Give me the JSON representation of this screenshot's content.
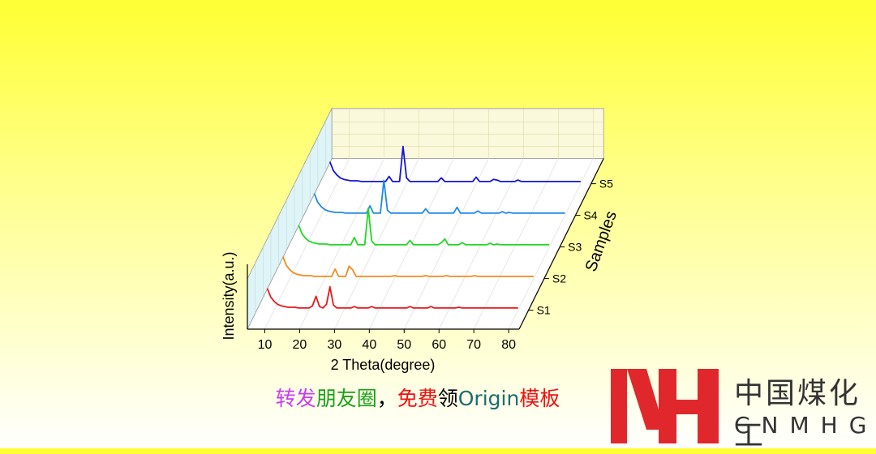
{
  "chart_data": {
    "type": "waterfall",
    "x": [
      8,
      9,
      10,
      11,
      12,
      13,
      14,
      15,
      16,
      17,
      18,
      19,
      20,
      21,
      22,
      23,
      24,
      25,
      26,
      27,
      28,
      29,
      30,
      31,
      32,
      33,
      34,
      35,
      36,
      37,
      38,
      39,
      40,
      41,
      42,
      43,
      44,
      45,
      46,
      47,
      48,
      49,
      50,
      51,
      52,
      53,
      54,
      55,
      56,
      57,
      58,
      59,
      60,
      61,
      62,
      63,
      64,
      65,
      66,
      67,
      68,
      69,
      70,
      71,
      72,
      73,
      74,
      75,
      76,
      77,
      78,
      79,
      80
    ],
    "series": [
      {
        "name": "S1",
        "color": "#e8191b",
        "values": [
          30,
          18,
          12,
          8,
          6,
          5,
          4,
          4,
          4,
          3,
          3,
          3,
          3,
          6,
          19,
          5,
          3,
          8,
          32,
          7,
          3,
          3,
          3,
          3,
          3,
          5,
          3,
          3,
          3,
          3,
          5,
          3,
          3,
          3,
          3,
          3,
          3,
          3,
          3,
          3,
          3,
          5,
          3,
          3,
          3,
          3,
          3,
          5,
          3,
          3,
          3,
          3,
          3,
          3,
          3,
          4,
          3,
          3,
          3,
          3,
          3,
          3,
          3,
          3,
          3,
          3,
          3,
          3,
          3,
          3,
          3,
          3,
          3
        ]
      },
      {
        "name": "S2",
        "color": "#f28a1e",
        "values": [
          30,
          18,
          12,
          8,
          6,
          5,
          4,
          4,
          4,
          3,
          3,
          3,
          3,
          3,
          3,
          13,
          3,
          3,
          3,
          17,
          12,
          3,
          3,
          3,
          3,
          3,
          3,
          3,
          3,
          3,
          3,
          3,
          4,
          3,
          3,
          3,
          3,
          3,
          3,
          3,
          3,
          4,
          3,
          3,
          3,
          3,
          3,
          4,
          3,
          3,
          3,
          3,
          3,
          3,
          3,
          4,
          3,
          3,
          3,
          3,
          3,
          3,
          3,
          3,
          3,
          3,
          3,
          3,
          3,
          3,
          3,
          3,
          3
        ]
      },
      {
        "name": "S3",
        "color": "#22d822",
        "values": [
          30,
          18,
          12,
          8,
          6,
          5,
          4,
          4,
          4,
          3,
          3,
          3,
          3,
          3,
          3,
          3,
          13,
          3,
          3,
          3,
          53,
          8,
          3,
          3,
          3,
          3,
          3,
          3,
          3,
          3,
          3,
          3,
          9,
          3,
          3,
          3,
          3,
          3,
          3,
          3,
          3,
          6,
          11,
          3,
          3,
          3,
          3,
          6,
          3,
          3,
          3,
          3,
          3,
          3,
          3,
          5,
          3,
          4,
          3,
          3,
          3,
          3,
          3,
          3,
          3,
          3,
          3,
          3,
          3,
          3,
          3,
          3,
          3
        ]
      },
      {
        "name": "S4",
        "color": "#1e88e8",
        "values": [
          30,
          18,
          12,
          8,
          6,
          5,
          4,
          4,
          4,
          3,
          3,
          3,
          3,
          3,
          3,
          3,
          13,
          3,
          3,
          3,
          48,
          7,
          3,
          3,
          3,
          3,
          3,
          3,
          3,
          3,
          3,
          3,
          9,
          3,
          3,
          3,
          3,
          3,
          3,
          3,
          3,
          11,
          3,
          3,
          3,
          3,
          3,
          6,
          3,
          3,
          3,
          3,
          3,
          3,
          5,
          3,
          4,
          3,
          3,
          3,
          3,
          3,
          3,
          3,
          3,
          3,
          3,
          3,
          3,
          3,
          3,
          3,
          3
        ]
      },
      {
        "name": "S5",
        "color": "#1414d8",
        "values": [
          30,
          18,
          12,
          8,
          6,
          5,
          4,
          4,
          4,
          3,
          3,
          3,
          3,
          3,
          3,
          3,
          3,
          10,
          3,
          3,
          3,
          51,
          8,
          3,
          3,
          3,
          3,
          3,
          3,
          3,
          3,
          3,
          8,
          3,
          3,
          3,
          3,
          3,
          3,
          3,
          3,
          3,
          9,
          3,
          3,
          3,
          3,
          6,
          5,
          3,
          3,
          3,
          3,
          3,
          5,
          3,
          3,
          3,
          3,
          3,
          3,
          3,
          3,
          3,
          3,
          3,
          3,
          3,
          3,
          3,
          3,
          3,
          3
        ]
      }
    ],
    "xlim": [
      5,
      83
    ],
    "xticks": [
      10,
      20,
      30,
      40,
      50,
      60,
      70,
      80
    ],
    "ylim": [
      0,
      100
    ],
    "x_label": "2 Theta(degree)",
    "y_label": "Intensity(a.u.)",
    "z_label": "Samples",
    "grid": true
  },
  "caption": {
    "segments": [
      {
        "text": "转发",
        "color": "#c83cf0"
      },
      {
        "text": "朋友圈",
        "color": "#1aa01a"
      },
      {
        "text": "，",
        "color": "#000000"
      },
      {
        "text": "免费",
        "color": "#ee1111"
      },
      {
        "text": "领",
        "color": "#000000"
      },
      {
        "text": "Origin",
        "color": "#1a6e6e"
      },
      {
        "text": "模板",
        "color": "#ee1111"
      }
    ]
  },
  "logo": {
    "name": "中国煤化工",
    "abbr": "CNMHG"
  }
}
